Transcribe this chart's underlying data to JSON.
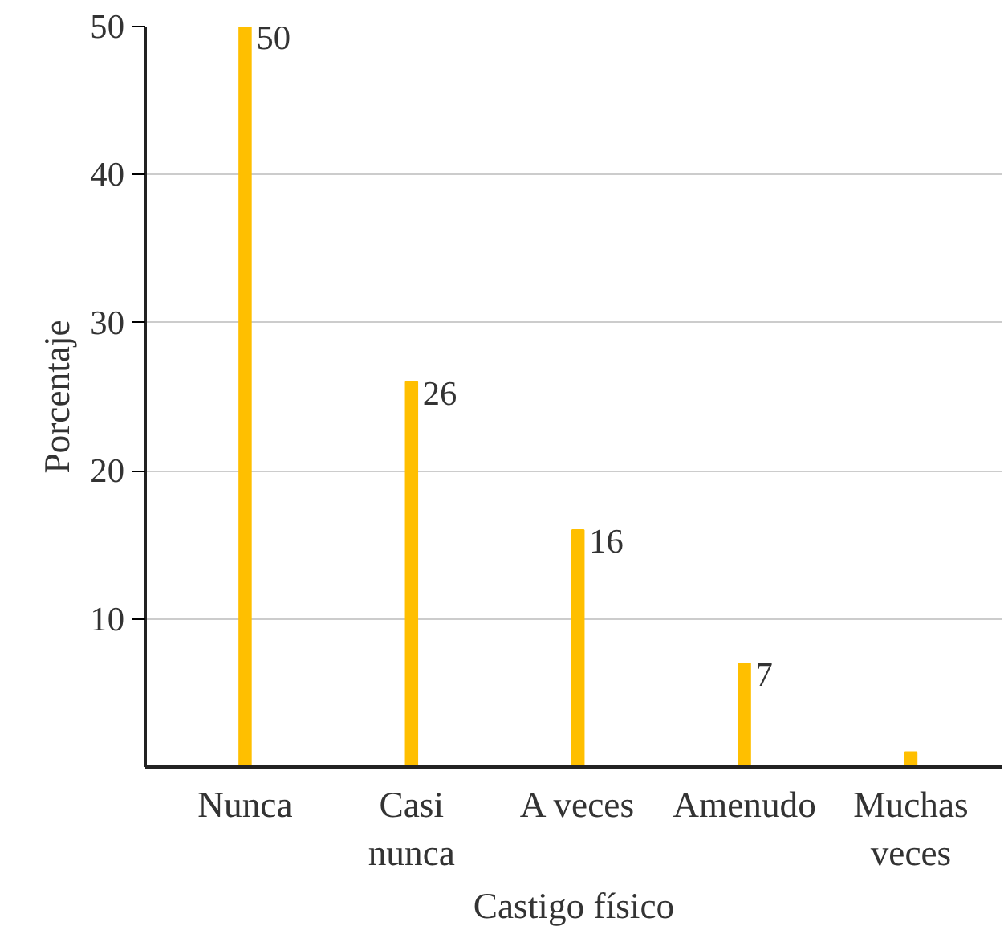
{
  "chart_data": {
    "type": "bar",
    "categories": [
      "Nunca",
      "Casi\nnunca",
      "A veces",
      "Amenudo",
      "Muchas\nveces"
    ],
    "values": [
      50,
      26,
      16,
      7,
      1
    ],
    "value_labels": [
      "50",
      "26",
      "16",
      "7",
      null
    ],
    "color": "#ffbf00",
    "xlabel": "Castigo físico",
    "ylabel": "Porcentaje",
    "ylim": [
      0,
      50
    ],
    "yticks": [
      10,
      20,
      30,
      40,
      50
    ],
    "grid": "y"
  }
}
